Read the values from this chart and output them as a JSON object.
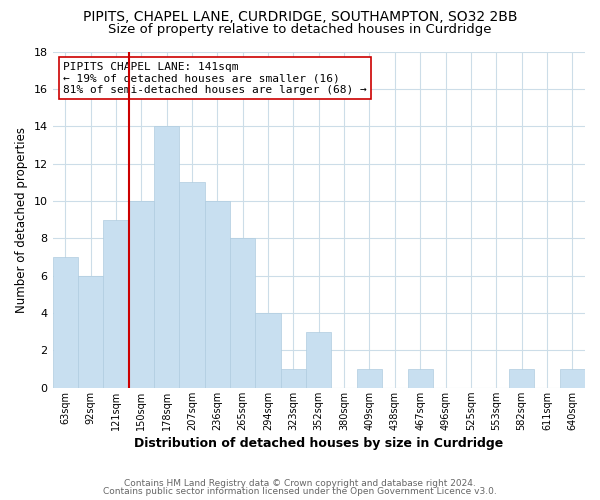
{
  "title": "PIPITS, CHAPEL LANE, CURDRIDGE, SOUTHAMPTON, SO32 2BB",
  "subtitle": "Size of property relative to detached houses in Curdridge",
  "xlabel": "Distribution of detached houses by size in Curdridge",
  "ylabel": "Number of detached properties",
  "bar_color": "#c8dff0",
  "bar_edge_color": "#b0cce0",
  "bin_labels": [
    "63sqm",
    "92sqm",
    "121sqm",
    "150sqm",
    "178sqm",
    "207sqm",
    "236sqm",
    "265sqm",
    "294sqm",
    "323sqm",
    "352sqm",
    "380sqm",
    "409sqm",
    "438sqm",
    "467sqm",
    "496sqm",
    "525sqm",
    "553sqm",
    "582sqm",
    "611sqm",
    "640sqm"
  ],
  "bar_heights": [
    7,
    6,
    9,
    10,
    14,
    11,
    10,
    8,
    4,
    1,
    3,
    0,
    1,
    0,
    1,
    0,
    0,
    0,
    1,
    0,
    1
  ],
  "ylim": [
    0,
    18
  ],
  "yticks": [
    0,
    2,
    4,
    6,
    8,
    10,
    12,
    14,
    16,
    18
  ],
  "vline_index": 3,
  "vline_color": "#cc0000",
  "annotation_line1": "PIPITS CHAPEL LANE: 141sqm",
  "annotation_line2": "← 19% of detached houses are smaller (16)",
  "annotation_line3": "81% of semi-detached houses are larger (68) →",
  "annotation_box_edge": "#cc0000",
  "footer_line1": "Contains HM Land Registry data © Crown copyright and database right 2024.",
  "footer_line2": "Contains public sector information licensed under the Open Government Licence v3.0.",
  "background_color": "#ffffff",
  "grid_color": "#ccdde8",
  "title_fontsize": 10,
  "subtitle_fontsize": 9.5
}
